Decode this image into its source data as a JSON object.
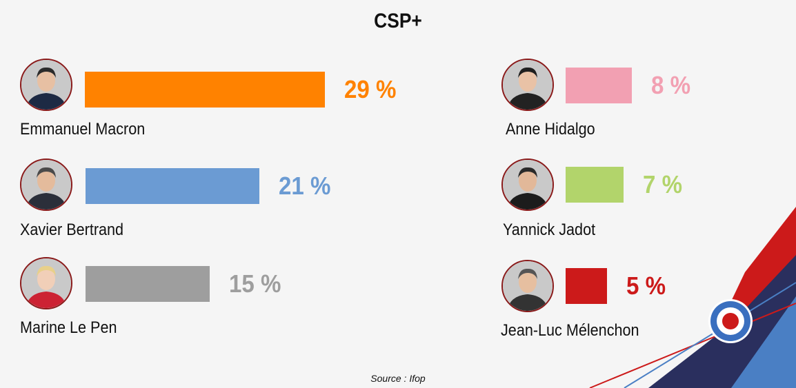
{
  "chart_data": {
    "type": "bar",
    "title": "CSP+",
    "unit": "%",
    "categories": [
      "Emmanuel Macron",
      "Xavier Bertrand",
      "Marine Le Pen",
      "Anne Hidalgo",
      "Yannick Jadot",
      "Jean-Luc Mélenchon"
    ],
    "values": [
      29,
      21,
      15,
      8,
      7,
      5
    ],
    "colors": [
      "#ff8200",
      "#6b9bd3",
      "#9e9e9e",
      "#f2a0b2",
      "#b2d46b",
      "#cc1a1a"
    ],
    "value_labels": [
      "29 %",
      "21 %",
      "15 %",
      "8 %",
      "7 %",
      "5 %"
    ],
    "source": "Source :  Ifop"
  },
  "icons": [
    "photo-emmanuel-macron",
    "photo-xavier-bertrand",
    "photo-marine-le-pen",
    "photo-anne-hidalgo",
    "photo-yannick-jadot",
    "photo-jean-luc-melenchon",
    "roundel-icon"
  ]
}
